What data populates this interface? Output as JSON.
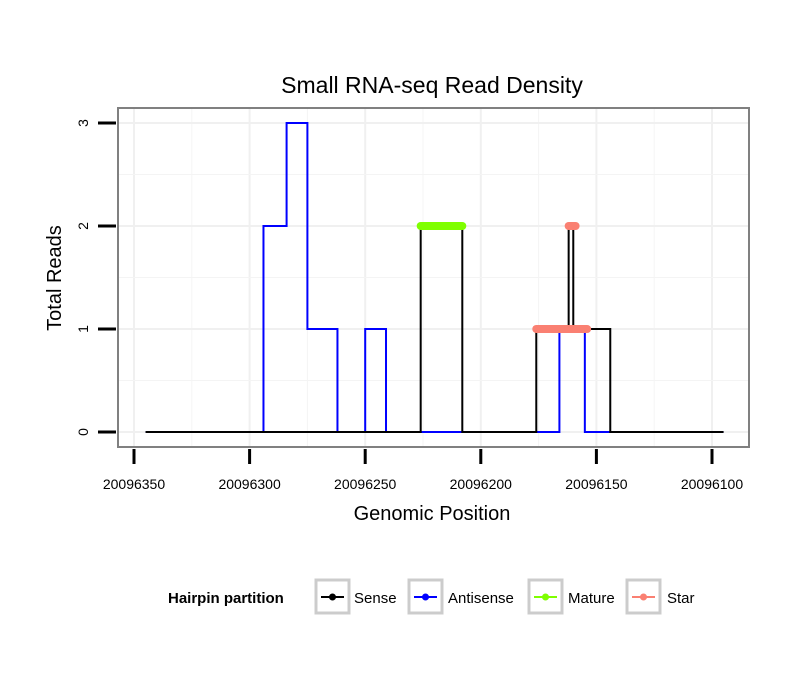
{
  "chart_data": {
    "type": "line",
    "title": "Small RNA-seq Read Density",
    "xlabel": "Genomic Position",
    "ylabel": "Total Reads",
    "xlim": [
      20096360,
      20096090
    ],
    "ylim": [
      -0.15,
      3.15
    ],
    "x_reversed": true,
    "x_ticks": [
      20096350,
      20096300,
      20096250,
      20096200,
      20096150,
      20096100
    ],
    "x_tick_labels": [
      "20096350",
      "20096300",
      "20096250",
      "20096200",
      "20096150",
      "20096100"
    ],
    "y_ticks": [
      0,
      1,
      2,
      3
    ],
    "y_tick_labels": [
      "0",
      "1",
      "2",
      "3"
    ],
    "grid": true,
    "legend": {
      "title": "Hairpin partition",
      "placement": "bottom",
      "entries": [
        "Sense",
        "Antisense",
        "Mature",
        "Star"
      ]
    },
    "series": [
      {
        "name": "Sense",
        "color": "#000000",
        "style": "step",
        "x": [
          20096345,
          20096226,
          20096226,
          20096208,
          20096208,
          20096176,
          20096176,
          20096162,
          20096162,
          20096160,
          20096160,
          20096154,
          20096154,
          20096144,
          20096144,
          20096095
        ],
        "y": [
          0,
          0,
          2,
          2,
          0,
          0,
          1,
          1,
          2,
          2,
          1,
          1,
          1,
          1,
          0,
          0
        ]
      },
      {
        "name": "Antisense",
        "color": "#0000ff",
        "style": "step",
        "x": [
          20096345,
          20096294,
          20096294,
          20096284,
          20096284,
          20096275,
          20096275,
          20096262,
          20096262,
          20096250,
          20096250,
          20096241,
          20096241,
          20096221,
          20096221,
          20096176,
          20096176,
          20096166,
          20096166,
          20096155,
          20096155,
          20096144,
          20096144,
          20096095
        ],
        "y": [
          0,
          0,
          2,
          2,
          3,
          3,
          1,
          1,
          0,
          0,
          1,
          1,
          0,
          0,
          0,
          0,
          0,
          0,
          1,
          1,
          0,
          0,
          0,
          0
        ]
      },
      {
        "name": "Mature",
        "color": "#7fff00",
        "style": "segment",
        "x": [
          20096226,
          20096208
        ],
        "y": [
          2,
          2
        ]
      },
      {
        "name": "Star",
        "color": "#fa8072",
        "style": "segment",
        "segments": [
          {
            "x": [
              20096176,
              20096154
            ],
            "y": [
              1,
              1
            ]
          },
          {
            "x": [
              20096162,
              20096159
            ],
            "y": [
              2,
              2
            ]
          }
        ]
      }
    ]
  }
}
